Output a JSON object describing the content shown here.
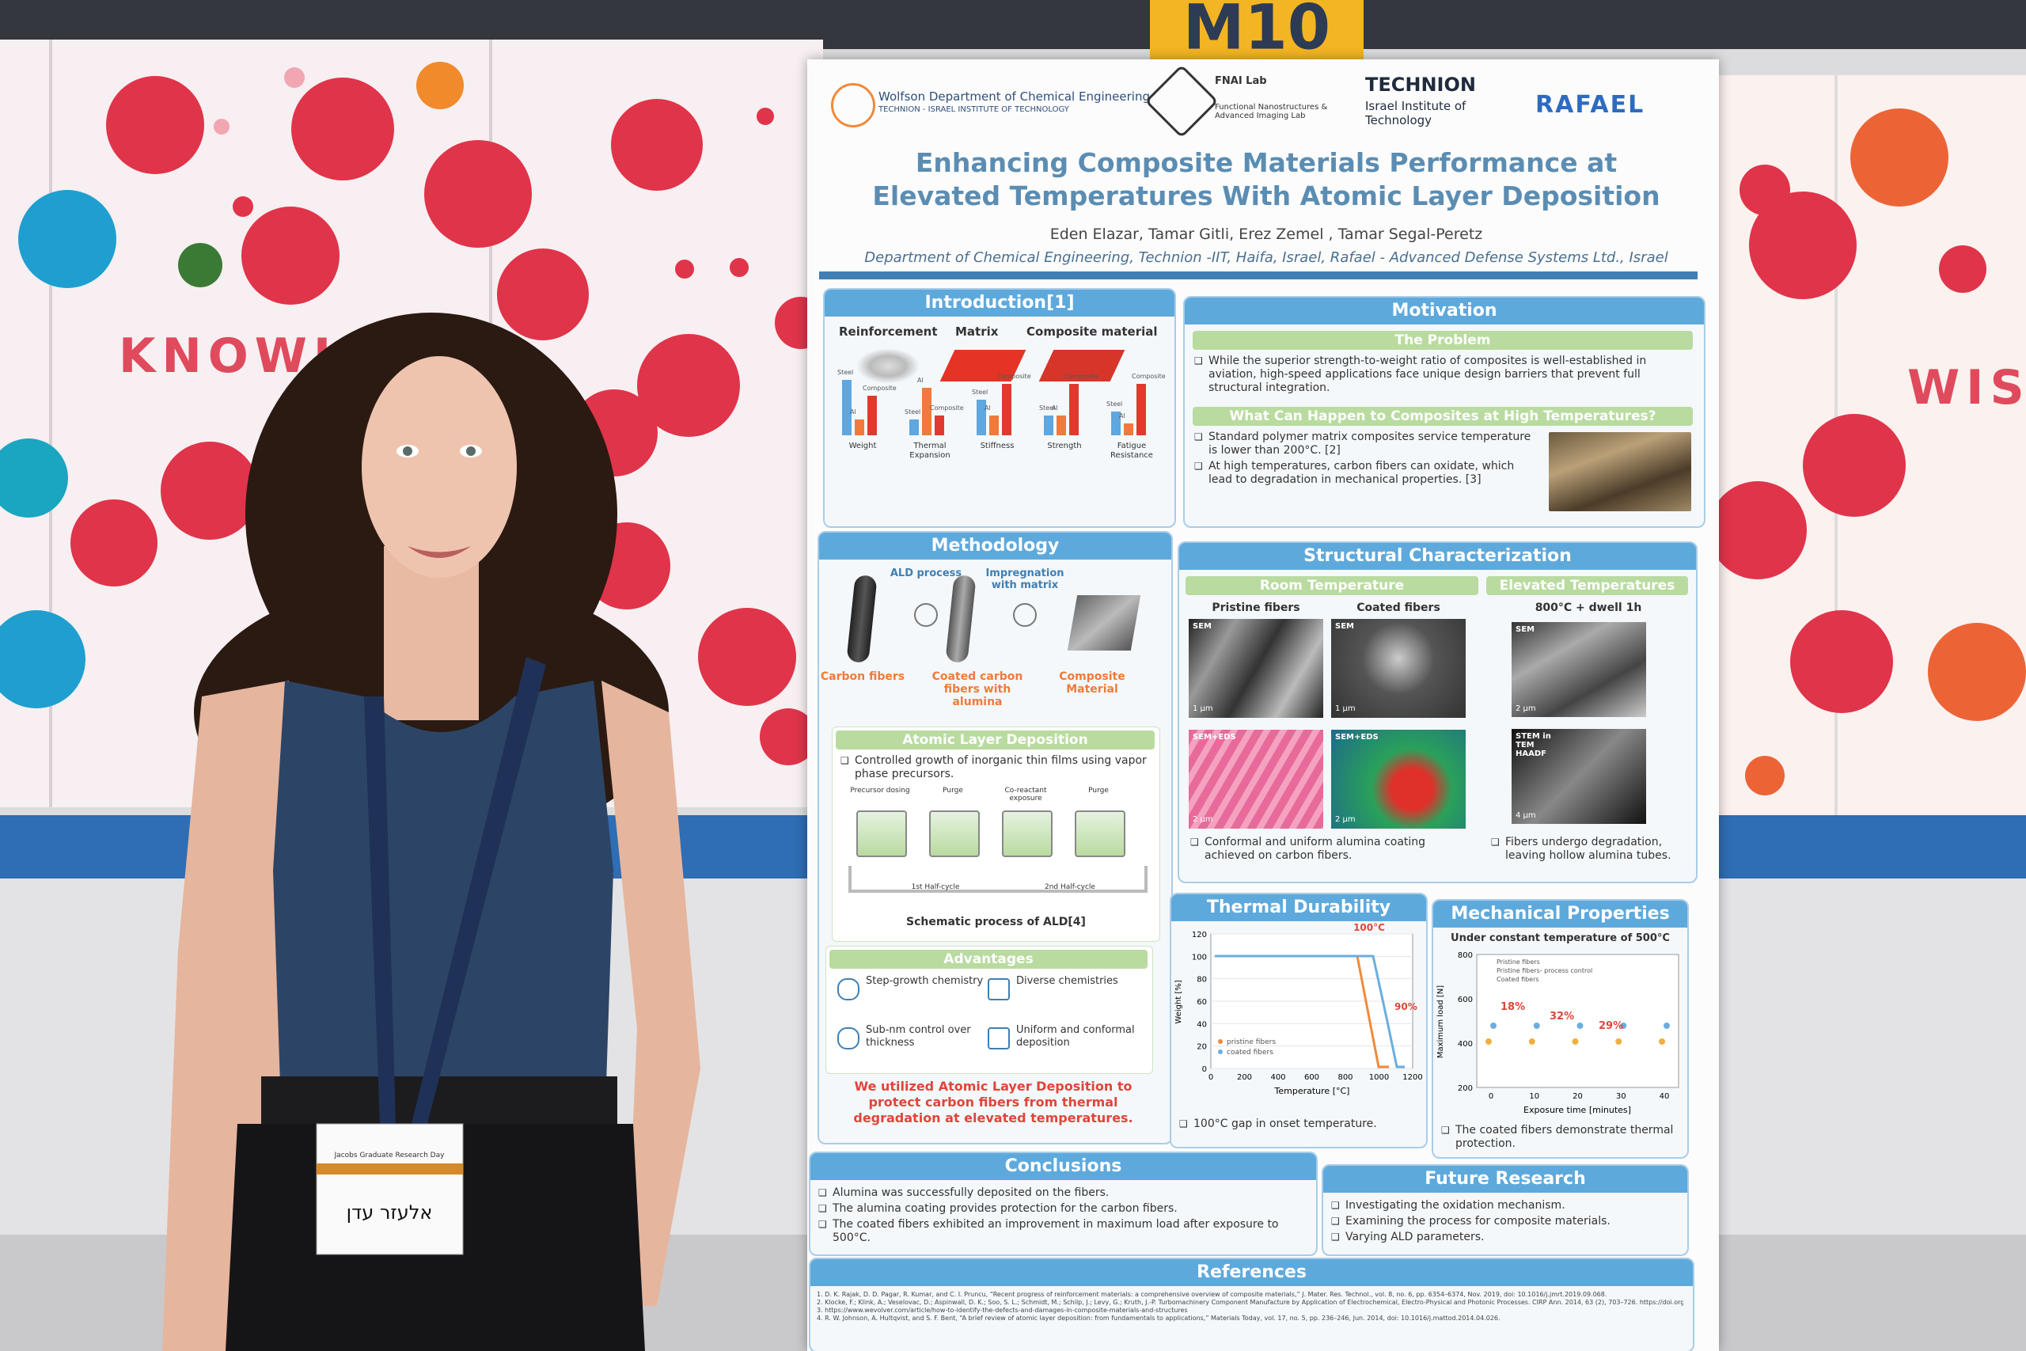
{
  "sign": "M10",
  "screens": {
    "left_word": "KNOWLED",
    "right_word": "WIS"
  },
  "badge": {
    "event": "Jacobs Graduate Research Day",
    "name": "אלעזר עדן"
  },
  "poster": {
    "header": {
      "dept": "Wolfson Department of Chemical Engineering",
      "dept_sub": "TECHNION - ISRAEL INSTITUTE OF TECHNOLOGY",
      "lab": "FNAI Lab",
      "lab_sub": "Functional Nanostructures & Advanced Imaging Lab",
      "technion": "TECHNION",
      "technion_sub": "Israel Institute of Technology",
      "rafael": "RAFAEL"
    },
    "title": "Enhancing Composite Materials Performance at Elevated Temperatures With Atomic Layer Deposition",
    "authors": "Eden Elazar, Tamar Gitli, Erez Zemel , Tamar Segal-Peretz",
    "affiliation": "Department of Chemical Engineering, Technion -IIT, Haifa, Israel, Rafael - Advanced Defense Systems Ltd., Israel",
    "introduction": {
      "title": "Introduction[1]",
      "labels": [
        "Reinforcement",
        "Matrix",
        "Composite material"
      ],
      "materials": [
        "Steel",
        "Al",
        "Composite"
      ],
      "properties": [
        "Weight",
        "Thermal Expansion",
        "Stiffness",
        "Strength",
        "Fatigue Resistance"
      ]
    },
    "motivation": {
      "title": "Motivation",
      "problem_title": "The Problem",
      "problem": [
        "While the superior strength-to-weight ratio of composites is well-established in aviation, high-speed applications face unique design barriers that prevent full structural integration."
      ],
      "high_temp_title": "What Can Happen to Composites at High Temperatures?",
      "bullets": [
        "Standard polymer matrix composites service temperature is lower than 200°C. [2]",
        "At high temperatures, carbon fibers can oxidate, which lead to degradation in mechanical properties. [3]"
      ]
    },
    "methodology": {
      "title": "Methodology",
      "steps": [
        "Carbon fibers",
        "Coated carbon fibers with alumina",
        "Composite Material"
      ],
      "arrows": [
        "ALD process",
        "Impregnation with matrix"
      ],
      "ald_title": "Atomic Layer Deposition",
      "ald_bullets": [
        "Controlled growth of inorganic thin films using vapor phase precursors."
      ],
      "ald_stages": [
        "Precursor dosing",
        "Purge",
        "Co-reactant exposure",
        "Purge"
      ],
      "ald_cycles": [
        "1st Half-cycle",
        "2nd Half-cycle"
      ],
      "ald_caption": "Schematic process of ALD[4]",
      "advantages_title": "Advantages",
      "advantages": [
        "Step-growth chemistry",
        "Diverse chemistries",
        "Sub-nm control over thickness",
        "Uniform and conformal deposition"
      ],
      "statement": "We utilized Atomic Layer Deposition to protect carbon fibers from thermal degradation at elevated temperatures."
    },
    "structural": {
      "title": "Structural Characterization",
      "room_title": "Room Temperature",
      "room_labels": [
        "Pristine fibers",
        "Coated fibers"
      ],
      "room_panels": [
        "SEM",
        "SEM",
        "SEM+EDS",
        "SEM+EDS"
      ],
      "room_scales": [
        "1 μm",
        "1 μm",
        "2 μm",
        "2 μm"
      ],
      "room_note": [
        "Conformal and uniform alumina coating achieved on carbon fibers."
      ],
      "elevated_title": "Elevated Temperatures",
      "elevated_label": "800°C + dwell 1h",
      "elevated_panels": [
        "SEM",
        "STEM in TEM HAADF"
      ],
      "elevated_scales": [
        "2 μm",
        "4 μm"
      ],
      "elevated_note": [
        "Fibers undergo degradation, leaving hollow alumina tubes."
      ]
    },
    "thermal": {
      "title": "Thermal Durability",
      "gap_label": "100°C",
      "drop_label": "90%",
      "ylabel": "Weight [%]",
      "xlabel": "Temperature [°C]",
      "yticks": [
        "120",
        "100",
        "80",
        "60",
        "40",
        "20",
        "0"
      ],
      "xticks": [
        "0",
        "200",
        "400",
        "600",
        "800",
        "1000",
        "1200"
      ],
      "legend": [
        "pristine fibers",
        "coated fibers"
      ],
      "note": [
        "100°C gap in onset temperature."
      ]
    },
    "mechanical": {
      "title": "Mechanical Properties",
      "subtitle": "Under constant temperature of 500°C",
      "ylabel": "Maximum load [N]",
      "xlabel": "Exposure time [minutes]",
      "yticks": [
        "800",
        "600",
        "400",
        "200"
      ],
      "xticks": [
        "0",
        "10",
        "20",
        "30",
        "40"
      ],
      "legend": [
        "Pristine fibers",
        "Pristine fibers- process control",
        "Coated fibers"
      ],
      "gains": [
        "18%",
        "32%",
        "29%"
      ],
      "note": [
        "The coated fibers demonstrate thermal protection."
      ]
    },
    "conclusions": {
      "title": "Conclusions",
      "items": [
        "Alumina was successfully deposited on the fibers.",
        "The alumina coating provides protection for the carbon fibers.",
        "The coated fibers exhibited an improvement in maximum load after exposure to 500°C."
      ]
    },
    "future": {
      "title": "Future Research",
      "items": [
        "Investigating the oxidation mechanism.",
        "Examining the process for composite materials.",
        "Varying ALD parameters."
      ]
    },
    "references": {
      "title": "References",
      "items": [
        "1. D. K. Rajak, D. D. Pagar, R. Kumar, and C. I. Pruncu, “Recent progress of reinforcement materials: a comprehensive overview of composite materials,” J. Mater. Res. Technol., vol. 8, no. 6, pp. 6354–6374, Nov. 2019, doi: 10.1016/j.jmrt.2019.09.068.",
        "2. Klocke, F.; Klink, A.; Veselovac, D.; Aspinwall, D. K.; Soo, S. L.; Schmidt, M.; Schilp, J.; Levy, G.; Kruth, J.-P. Turbomachinery Component Manufacture by Application of Electrochemical, Electro-Physical and Photonic Processes. CIRP Ann. 2014, 63 (2), 703–726. https://doi.org/10.1016/j.cirp.2014.05.004",
        "3. https://www.wevolver.com/article/how-to-identify-the-defects-and-damages-in-composite-materials-and-structures",
        "4. R. W. Johnson, A. Hultqvist, and S. F. Bent, “A brief review of atomic layer deposition: from fundamentals to applications,” Materials Today, vol. 17, no. 5, pp. 236–246, Jun. 2014, doi: 10.1016/j.mattod.2014.04.026."
      ]
    }
  }
}
